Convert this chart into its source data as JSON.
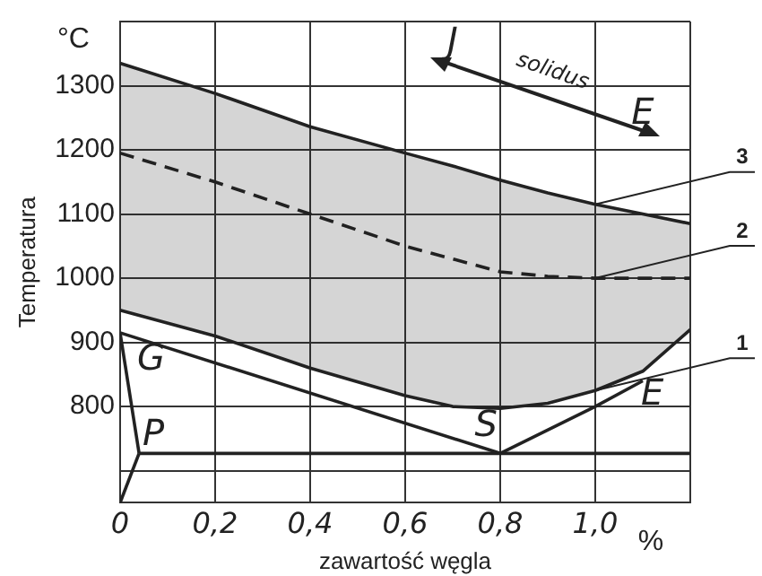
{
  "chart_data": {
    "type": "line",
    "xlabel": "zawartość węgla",
    "ylabel": "Temperatura",
    "xlim": [
      0,
      1.2
    ],
    "ylim": [
      650,
      1400
    ],
    "xticks": [
      {
        "value": 0,
        "label": "0"
      },
      {
        "value": 0.2,
        "label": "0,2"
      },
      {
        "value": 0.4,
        "label": "0,4"
      },
      {
        "value": 0.6,
        "label": "0,6"
      },
      {
        "value": 0.8,
        "label": "0,8"
      },
      {
        "value": 1.0,
        "label": "1,0"
      },
      {
        "value": 1.2,
        "label": null
      }
    ],
    "yticks": [
      {
        "value": 700,
        "label": null
      },
      800,
      900,
      1000,
      1100,
      1200,
      1300,
      {
        "value": 1400,
        "label": null
      }
    ],
    "grid": true,
    "legend": false,
    "marker": "none",
    "series": [
      {
        "color": "#222222",
        "x": [
          0,
          0.8
        ],
        "values": [
          915,
          727
        ]
      },
      {
        "color": "#222222",
        "x": [
          0,
          0.04
        ],
        "values": [
          915,
          727
        ]
      },
      {
        "color": "#222222",
        "x": [
          0,
          0.04
        ],
        "values": [
          650,
          727
        ]
      },
      {
        "color": "#222222",
        "x": [
          0.04,
          1.2
        ],
        "values": [
          727,
          727
        ]
      },
      {
        "color": "#222222",
        "x": [
          0.8,
          1.0,
          1.1
        ],
        "values": [
          727,
          800,
          840
        ]
      },
      {
        "name": "1",
        "color": "#222222",
        "x": [
          0,
          0.2,
          0.4,
          0.6,
          0.7,
          0.8,
          0.9,
          1.0,
          1.1,
          1.2
        ],
        "values": [
          950,
          910,
          860,
          817,
          800,
          797,
          805,
          825,
          855,
          920
        ]
      },
      {
        "name": "3",
        "color": "#222222",
        "x": [
          0,
          0.2,
          0.4,
          0.6,
          0.7,
          0.8,
          0.9,
          1.0,
          1.1,
          1.2
        ],
        "values": [
          1335,
          1288,
          1236,
          1195,
          1175,
          1153,
          1133,
          1115,
          1100,
          1085
        ]
      },
      {
        "name": "2",
        "color": "#222222",
        "line_style": "dashed",
        "x": [
          0,
          0.2,
          0.4,
          0.6,
          0.7,
          0.8,
          0.9,
          1.0,
          1.1,
          1.2
        ],
        "values": [
          1195,
          1150,
          1100,
          1050,
          1030,
          1010,
          1003,
          1000,
          1000,
          1000
        ],
        "lower": [
          950,
          910,
          860,
          817,
          800,
          797,
          805,
          825,
          855,
          920
        ],
        "upper": [
          1335,
          1288,
          1236,
          1195,
          1175,
          1153,
          1133,
          1115,
          1100,
          1085
        ]
      }
    ],
    "annotations": [
      "°C",
      "%",
      "G",
      "P",
      "S",
      "E",
      "J",
      "E",
      "solidus"
    ]
  }
}
